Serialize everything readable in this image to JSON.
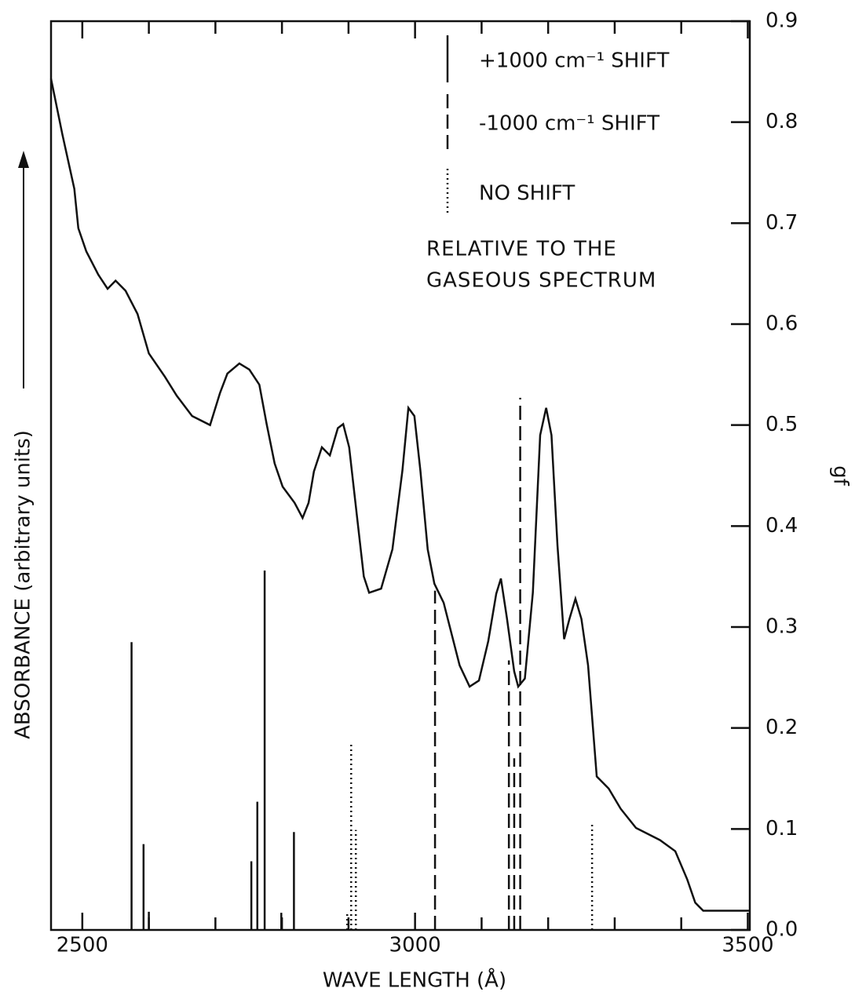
{
  "chart_data": {
    "type": "line",
    "xlabel": "WAVE LENGTH (Å)",
    "ylabel": "ABSORBANCE (arbitrary units)",
    "y2label": "gf",
    "xlim": [
      2453,
      3503
    ],
    "xticks": [
      2500,
      3000,
      3500
    ],
    "xminor_ticks": [
      2600,
      2700,
      2800,
      2900,
      3100,
      3200,
      3300,
      3400
    ],
    "ylim": [
      0,
      0.9
    ],
    "yticks": [
      {
        "value": 0,
        "label": "0.0"
      },
      0.1,
      0.2,
      0.3,
      0.4,
      0.5,
      0.6,
      0.7,
      0.8,
      0.9
    ],
    "annotation": [
      "RELATIVE TO THE",
      "GASEOUS SPECTRUM"
    ],
    "curve": {
      "color": "#111",
      "x": [
        2453,
        2470,
        2488,
        2494,
        2506,
        2524,
        2538,
        2550,
        2565,
        2583,
        2600,
        2624,
        2642,
        2665,
        2692,
        2707,
        2718,
        2736,
        2751,
        2766,
        2777,
        2789,
        2801,
        2819,
        2831,
        2840,
        2848,
        2860,
        2872,
        2884,
        2892,
        2901,
        2913,
        2923,
        2931,
        2949,
        2966,
        2981,
        2990,
        2999,
        3008,
        3019,
        3029,
        3043,
        3055,
        3067,
        3082,
        3096,
        3110,
        3122,
        3129,
        3138,
        3149,
        3155,
        3165,
        3177,
        3188,
        3197,
        3205,
        3214,
        3224,
        3232,
        3241,
        3250,
        3260,
        3273,
        3291,
        3309,
        3332,
        3368,
        3391,
        3409,
        3421,
        3433,
        3462,
        3503
      ],
      "values": [
        0.843,
        0.788,
        0.734,
        0.695,
        0.672,
        0.649,
        0.635,
        0.643,
        0.633,
        0.61,
        0.571,
        0.548,
        0.529,
        0.509,
        0.5,
        0.532,
        0.551,
        0.561,
        0.555,
        0.54,
        0.501,
        0.462,
        0.439,
        0.423,
        0.408,
        0.423,
        0.454,
        0.478,
        0.47,
        0.497,
        0.501,
        0.478,
        0.408,
        0.35,
        0.334,
        0.338,
        0.377,
        0.455,
        0.517,
        0.509,
        0.455,
        0.377,
        0.343,
        0.324,
        0.293,
        0.262,
        0.241,
        0.247,
        0.286,
        0.333,
        0.348,
        0.309,
        0.256,
        0.241,
        0.249,
        0.334,
        0.49,
        0.517,
        0.49,
        0.381,
        0.288,
        0.308,
        0.328,
        0.308,
        0.262,
        0.152,
        0.14,
        0.12,
        0.101,
        0.089,
        0.078,
        0.05,
        0.027,
        0.019,
        0.019,
        0.019
      ]
    },
    "series": [
      {
        "name": "+1000 cm⁻¹ SHIFT",
        "color": "#111",
        "dash": "solid",
        "x": [
          2574,
          2592,
          2600,
          2754,
          2763,
          2774,
          2799,
          2818
        ],
        "values": [
          0.285,
          0.085,
          0.018,
          0.068,
          0.127,
          0.356,
          0.017,
          0.097
        ]
      },
      {
        "name": "-1000 cm⁻¹ SHIFT",
        "color": "#111",
        "dash": "dashed",
        "x": [
          3030,
          3141,
          3149,
          3158
        ],
        "values": [
          0.336,
          0.267,
          0.17,
          0.527
        ]
      },
      {
        "name": "NO SHIFT",
        "color": "#111",
        "dash": "dotted",
        "x": [
          2898,
          2904,
          2911,
          3266
        ],
        "values": [
          0.016,
          0.186,
          0.099,
          0.107
        ]
      }
    ]
  }
}
